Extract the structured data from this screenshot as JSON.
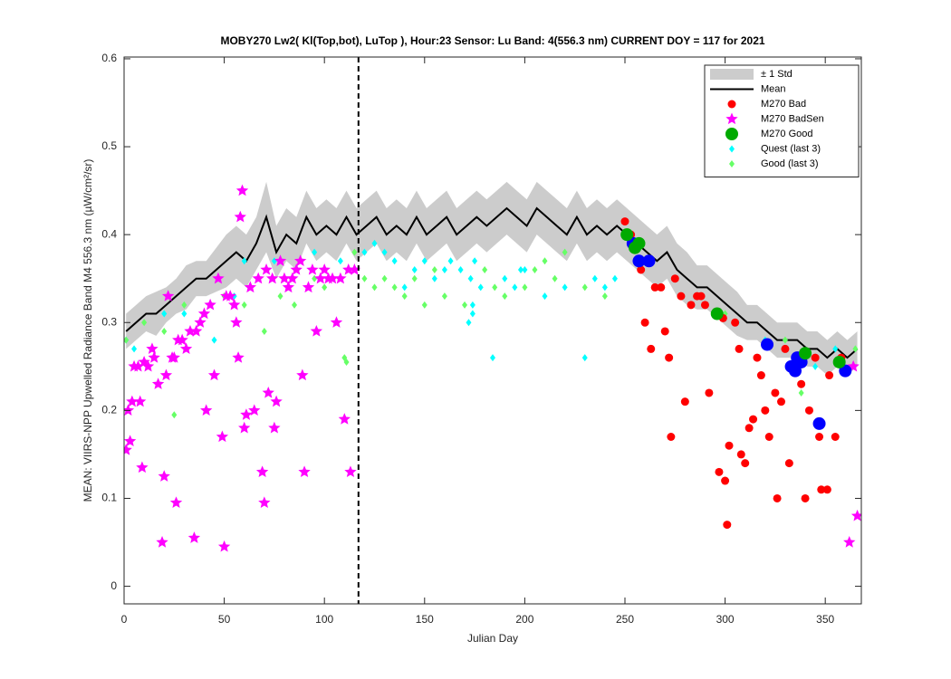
{
  "chart_data": {
    "type": "scatter",
    "title": "MOBY270   Lw2( Kl(Top,bot), LuTop ),   Hour:23 Sensor: Lu Band: 4(556.3 nm)   CURRENT DOY = 117 for 2021",
    "xlabel": "Julian Day",
    "ylabel": "MEAN: VIIRS-NPP Upwelled Radiance Band M4 556.3 nm (µW/cm²/sr)",
    "xlim": [
      0,
      368
    ],
    "ylim": [
      -0.02,
      0.602
    ],
    "xticks": [
      0,
      50,
      100,
      150,
      200,
      250,
      300,
      350
    ],
    "yticks": [
      0,
      0.1,
      0.2,
      0.3,
      0.4,
      0.5,
      0.6
    ],
    "marker_line_x": 117,
    "mean": {
      "name": "Mean",
      "color": "#000000",
      "x": [
        1,
        6,
        11,
        16,
        21,
        26,
        31,
        36,
        41,
        46,
        51,
        56,
        61,
        66,
        71,
        76,
        81,
        86,
        91,
        96,
        101,
        106,
        111,
        116,
        121,
        126,
        131,
        136,
        141,
        146,
        151,
        156,
        161,
        166,
        171,
        176,
        181,
        186,
        191,
        196,
        201,
        206,
        211,
        216,
        221,
        226,
        231,
        236,
        241,
        246,
        251,
        256,
        261,
        266,
        271,
        276,
        281,
        286,
        291,
        296,
        301,
        306,
        311,
        316,
        321,
        326,
        331,
        336,
        341,
        346,
        351,
        356,
        361,
        366
      ],
      "values": [
        0.29,
        0.3,
        0.31,
        0.31,
        0.32,
        0.33,
        0.34,
        0.35,
        0.35,
        0.36,
        0.37,
        0.38,
        0.37,
        0.39,
        0.42,
        0.38,
        0.4,
        0.39,
        0.42,
        0.4,
        0.41,
        0.4,
        0.42,
        0.4,
        0.41,
        0.42,
        0.4,
        0.41,
        0.4,
        0.42,
        0.4,
        0.41,
        0.42,
        0.4,
        0.41,
        0.42,
        0.41,
        0.42,
        0.43,
        0.42,
        0.41,
        0.43,
        0.42,
        0.41,
        0.4,
        0.42,
        0.4,
        0.41,
        0.4,
        0.41,
        0.4,
        0.39,
        0.38,
        0.37,
        0.38,
        0.36,
        0.35,
        0.34,
        0.34,
        0.33,
        0.32,
        0.31,
        0.3,
        0.3,
        0.29,
        0.28,
        0.28,
        0.28,
        0.27,
        0.27,
        0.26,
        0.27,
        0.26,
        0.27
      ]
    },
    "std_band": {
      "name": "± 1 Std",
      "color": "#cccccc",
      "values": [
        0.02,
        0.02,
        0.02,
        0.025,
        0.02,
        0.02,
        0.025,
        0.02,
        0.02,
        0.025,
        0.03,
        0.03,
        0.03,
        0.03,
        0.04,
        0.03,
        0.03,
        0.03,
        0.03,
        0.03,
        0.03,
        0.03,
        0.03,
        0.03,
        0.03,
        0.03,
        0.03,
        0.03,
        0.03,
        0.03,
        0.03,
        0.03,
        0.03,
        0.03,
        0.03,
        0.03,
        0.03,
        0.03,
        0.03,
        0.03,
        0.03,
        0.03,
        0.03,
        0.03,
        0.03,
        0.03,
        0.03,
        0.03,
        0.03,
        0.03,
        0.03,
        0.03,
        0.03,
        0.03,
        0.03,
        0.03,
        0.03,
        0.025,
        0.025,
        0.025,
        0.025,
        0.025,
        0.02,
        0.02,
        0.02,
        0.02,
        0.02,
        0.02,
        0.02,
        0.02,
        0.02,
        0.02,
        0.02,
        0.02
      ]
    },
    "series": [
      {
        "name": "M270 Bad",
        "color": "#ff0000",
        "marker": "circle",
        "x": [
          250,
          253,
          258,
          260,
          263,
          265,
          268,
          270,
          272,
          273,
          275,
          278,
          280,
          283,
          286,
          288,
          290,
          292,
          295,
          297,
          300,
          301,
          302,
          305,
          307,
          308,
          310,
          312,
          314,
          316,
          318,
          320,
          322,
          325,
          326,
          328,
          330,
          332,
          335,
          338,
          340,
          342,
          345,
          347,
          348,
          351,
          352,
          355,
          358,
          296,
          299
        ],
        "values": [
          0.415,
          0.4,
          0.36,
          0.3,
          0.27,
          0.34,
          0.34,
          0.29,
          0.26,
          0.17,
          0.35,
          0.33,
          0.21,
          0.32,
          0.33,
          0.33,
          0.32,
          0.22,
          0.31,
          0.13,
          0.12,
          0.07,
          0.16,
          0.3,
          0.27,
          0.15,
          0.14,
          0.18,
          0.19,
          0.26,
          0.24,
          0.2,
          0.17,
          0.22,
          0.1,
          0.21,
          0.27,
          0.14,
          0.26,
          0.23,
          0.1,
          0.2,
          0.26,
          0.17,
          0.11,
          0.11,
          0.24,
          0.17,
          0.26,
          0.31,
          0.305
        ]
      },
      {
        "name": "M270 BadSen",
        "color": "#ff00ff",
        "marker": "star",
        "x": [
          1,
          2,
          3,
          4,
          5,
          7,
          8,
          9,
          10,
          12,
          14,
          15,
          17,
          19,
          20,
          21,
          22,
          24,
          25,
          26,
          27,
          29,
          31,
          33,
          35,
          36,
          38,
          40,
          41,
          43,
          45,
          47,
          49,
          50,
          51,
          53,
          55,
          56,
          57,
          58,
          59,
          60,
          61,
          63,
          65,
          67,
          69,
          70,
          71,
          72,
          74,
          75,
          76,
          78,
          80,
          82,
          84,
          86,
          88,
          89,
          90,
          92,
          94,
          96,
          98,
          100,
          102,
          104,
          106,
          108,
          110,
          112,
          113,
          115,
          366,
          362,
          364
        ],
        "values": [
          0.155,
          0.2,
          0.165,
          0.21,
          0.25,
          0.25,
          0.21,
          0.135,
          0.255,
          0.25,
          0.27,
          0.26,
          0.23,
          0.05,
          0.125,
          0.24,
          0.33,
          0.26,
          0.26,
          0.095,
          0.28,
          0.28,
          0.27,
          0.29,
          0.055,
          0.29,
          0.3,
          0.31,
          0.2,
          0.32,
          0.24,
          0.35,
          0.17,
          0.045,
          0.33,
          0.33,
          0.32,
          0.3,
          0.26,
          0.42,
          0.45,
          0.18,
          0.195,
          0.34,
          0.2,
          0.35,
          0.13,
          0.095,
          0.36,
          0.22,
          0.35,
          0.18,
          0.21,
          0.37,
          0.35,
          0.34,
          0.35,
          0.36,
          0.37,
          0.24,
          0.13,
          0.34,
          0.36,
          0.29,
          0.35,
          0.36,
          0.35,
          0.35,
          0.3,
          0.35,
          0.19,
          0.36,
          0.13,
          0.36,
          0.08,
          0.05,
          0.25
        ]
      },
      {
        "name": "M270 Good",
        "color": "#00aa00",
        "marker": "big",
        "x": [
          251,
          255,
          257,
          296,
          340,
          357
        ],
        "values": [
          0.4,
          0.385,
          0.39,
          0.31,
          0.265,
          0.255
        ]
      },
      {
        "color": "#0000ff",
        "marker": "big",
        "x": [
          254,
          257,
          262,
          321,
          333,
          335,
          338,
          336,
          347,
          360
        ],
        "values": [
          0.39,
          0.37,
          0.37,
          0.275,
          0.25,
          0.245,
          0.255,
          0.26,
          0.185,
          0.245
        ]
      },
      {
        "name": "Quest (last 3)",
        "color": "#00ffff",
        "marker": "diamond",
        "x": [
          1,
          5,
          20,
          30,
          45,
          55,
          60,
          75,
          95,
          108,
          120,
          125,
          130,
          135,
          140,
          145,
          150,
          155,
          160,
          163,
          168,
          173,
          175,
          178,
          174,
          174,
          172,
          184,
          190,
          195,
          198,
          200,
          210,
          220,
          230,
          235,
          240,
          245,
          306,
          320,
          345,
          355
        ],
        "values": [
          0.28,
          0.27,
          0.31,
          0.31,
          0.28,
          0.33,
          0.37,
          0.37,
          0.38,
          0.37,
          0.38,
          0.39,
          0.38,
          0.37,
          0.34,
          0.36,
          0.37,
          0.35,
          0.36,
          0.37,
          0.36,
          0.35,
          0.37,
          0.34,
          0.32,
          0.31,
          0.3,
          0.26,
          0.35,
          0.34,
          0.36,
          0.36,
          0.33,
          0.34,
          0.26,
          0.35,
          0.34,
          0.35,
          0.3,
          0.28,
          0.25,
          0.27
        ]
      },
      {
        "name": "Good (last 3)",
        "color": "#66ff66",
        "marker": "diamond",
        "x": [
          1,
          10,
          20,
          30,
          40,
          50,
          60,
          70,
          78,
          85,
          95,
          100,
          110,
          111,
          115,
          120,
          125,
          130,
          135,
          140,
          145,
          150,
          155,
          160,
          170,
          180,
          185,
          190,
          200,
          205,
          210,
          215,
          220,
          230,
          240,
          300,
          305,
          330,
          365,
          25,
          338
        ],
        "values": [
          0.28,
          0.3,
          0.29,
          0.32,
          0.31,
          0.33,
          0.32,
          0.29,
          0.33,
          0.32,
          0.35,
          0.34,
          0.26,
          0.255,
          0.38,
          0.35,
          0.34,
          0.35,
          0.34,
          0.33,
          0.35,
          0.32,
          0.36,
          0.33,
          0.32,
          0.36,
          0.34,
          0.33,
          0.34,
          0.36,
          0.37,
          0.35,
          0.38,
          0.34,
          0.33,
          0.31,
          0.3,
          0.28,
          0.27,
          0.195,
          0.22
        ]
      }
    ]
  }
}
